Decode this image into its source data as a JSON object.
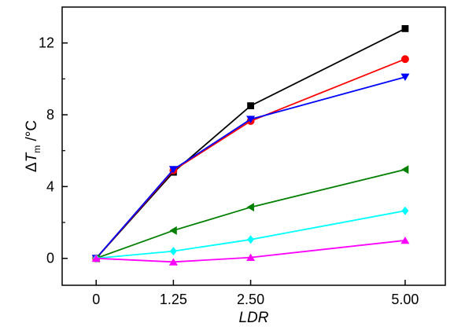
{
  "chart_data": {
    "type": "line",
    "title": "",
    "xlabel": "LDR",
    "ylabel": {
      "symbol": "Δ",
      "main": "T",
      "subscript": "m",
      "unit": " /°C"
    },
    "x": [
      0,
      1.25,
      2.5,
      5.0
    ],
    "x_tick_labels": [
      "0",
      "1.25",
      "2.50",
      "5.00"
    ],
    "y_ticks": [
      0,
      4,
      8,
      12
    ],
    "xlim": [
      -0.55,
      5.65
    ],
    "ylim": [
      -1.5,
      14.0
    ],
    "grid": false,
    "legend": "none",
    "series": [
      {
        "color": "#000000",
        "marker": "square",
        "values": [
          0,
          4.8,
          8.5,
          12.8
        ]
      },
      {
        "color": "#ff0000",
        "marker": "circle",
        "values": [
          0,
          4.9,
          7.65,
          11.1
        ]
      },
      {
        "color": "#0000ff",
        "marker": "triangle-down",
        "values": [
          0,
          4.95,
          7.75,
          10.1
        ]
      },
      {
        "color": "#008000",
        "marker": "triangle-left",
        "values": [
          0,
          1.55,
          2.85,
          4.95
        ]
      },
      {
        "color": "#00ffff",
        "marker": "diamond",
        "values": [
          0,
          0.4,
          1.05,
          2.65
        ]
      },
      {
        "color": "#ff00ff",
        "marker": "triangle-up",
        "values": [
          0,
          -0.2,
          0.05,
          1.0
        ]
      }
    ]
  }
}
